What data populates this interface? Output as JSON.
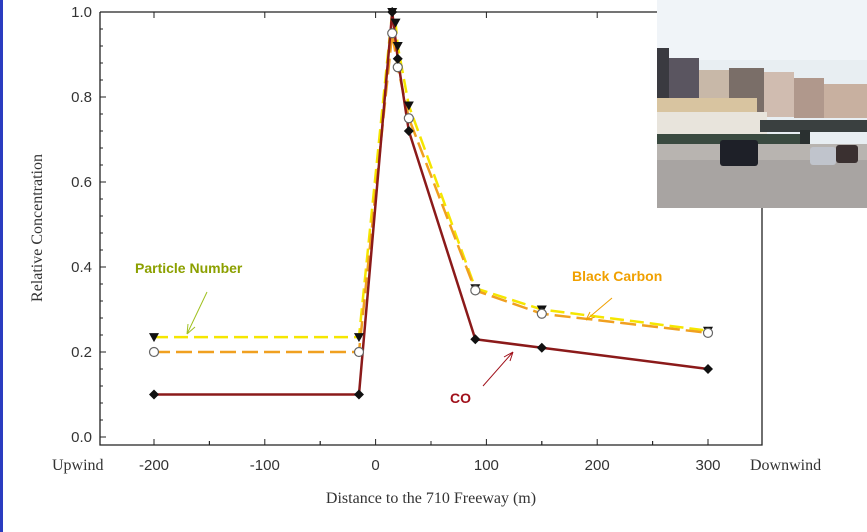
{
  "chart_data": {
    "type": "line",
    "title": "",
    "xlabel": "Distance to the 710 Freeway (m)",
    "ylabel": "Relative Concentration",
    "xlim": [
      -255,
      350
    ],
    "ylim": [
      0,
      1.0
    ],
    "x_ticks": [
      -200,
      -100,
      0,
      100,
      200,
      300
    ],
    "y_ticks": [
      "0.0",
      "0.2",
      "0.4",
      "0.6",
      "0.8",
      "1.0"
    ],
    "x_end_labels": {
      "left": "Upwind",
      "right": "Downwind"
    },
    "grid": false,
    "series": [
      {
        "name": "Particle Number",
        "color": "#f5e600",
        "style": "dashed",
        "marker": "triangle-down",
        "x": [
          -200,
          -15,
          15,
          18,
          20,
          30,
          90,
          150,
          300
        ],
        "y": [
          0.235,
          0.235,
          1.0,
          0.975,
          0.92,
          0.78,
          0.35,
          0.3,
          0.25
        ]
      },
      {
        "name": "Black Carbon",
        "color": "#f0a020",
        "style": "dashed",
        "marker": "open-circle",
        "x": [
          -200,
          -15,
          15,
          20,
          30,
          90,
          150,
          300
        ],
        "y": [
          0.2,
          0.2,
          0.95,
          0.87,
          0.75,
          0.345,
          0.29,
          0.245
        ]
      },
      {
        "name": "CO",
        "color": "#8b1a1a",
        "style": "solid",
        "marker": "diamond",
        "x": [
          -200,
          -15,
          15,
          20,
          30,
          90,
          150,
          300
        ],
        "y": [
          0.1,
          0.1,
          1.0,
          0.89,
          0.72,
          0.23,
          0.21,
          0.16
        ]
      }
    ],
    "annotations": [
      {
        "text": "Particle Number",
        "color": "#8ca000"
      },
      {
        "text": "Black Carbon",
        "color": "#f0a000"
      },
      {
        "text": "CO",
        "color": "#a0101a"
      }
    ],
    "inset_photo": "freeway-photo"
  }
}
